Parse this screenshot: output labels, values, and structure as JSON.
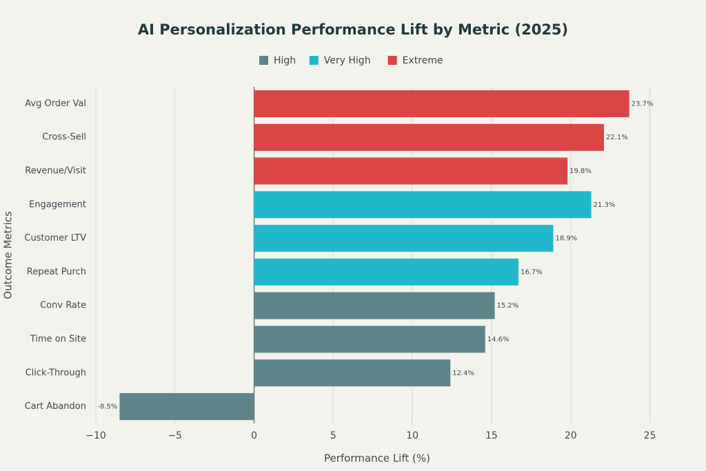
{
  "chart_data": {
    "type": "hbar",
    "title": "AI Personalization Performance Lift by Metric (2025)",
    "x_label": "Performance Lift (%)",
    "y_label": "Outcome Metrics",
    "categories": [
      "Avg Order Val",
      "Cross-Sell",
      "Revenue/Visit",
      "Engagement",
      "Customer LTV",
      "Repeat Purch",
      "Conv Rate",
      "Time on Site",
      "Click-Through",
      "Cart Abandon"
    ],
    "series": [
      {
        "name": "High",
        "color": "#5e8589",
        "values": [
          null,
          null,
          null,
          null,
          null,
          null,
          15.2,
          14.6,
          12.4,
          -8.5
        ],
        "value_labels": [
          null,
          null,
          null,
          null,
          null,
          null,
          "15.2%",
          "14.6%",
          "12.4%",
          "-8.5%"
        ]
      },
      {
        "name": "Very High",
        "color": "#21b8cc",
        "values": [
          null,
          null,
          null,
          21.3,
          18.9,
          16.7,
          null,
          null,
          null,
          null
        ],
        "value_labels": [
          null,
          null,
          null,
          "21.3%",
          "18.9%",
          "16.7%",
          null,
          null,
          null,
          null
        ]
      },
      {
        "name": "Extreme",
        "color": "#db4545",
        "values": [
          23.7,
          22.1,
          19.8,
          null,
          null,
          null,
          null,
          null,
          null,
          null
        ],
        "value_labels": [
          "23.7%",
          "22.1%",
          "19.8%",
          null,
          null,
          null,
          null,
          null,
          null,
          null
        ]
      }
    ],
    "xlim": [
      -10,
      25.5
    ],
    "xticks": [
      {
        "value": -10,
        "label": "−10"
      },
      {
        "value": -5,
        "label": "−5"
      },
      0,
      5,
      10,
      15,
      20,
      25
    ],
    "grid": true
  }
}
